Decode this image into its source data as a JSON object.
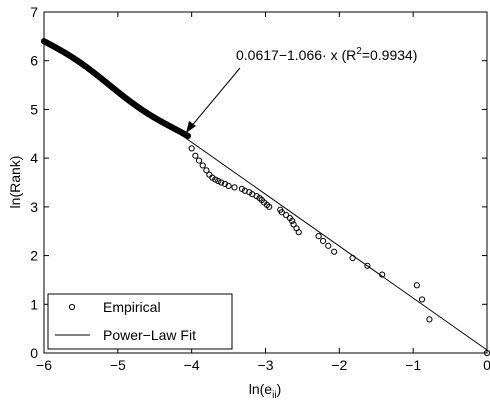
{
  "chart_data": {
    "type": "scatter",
    "xlabel_main": "ln(e",
    "xlabel_sub": "ii",
    "xlabel_close": ")",
    "ylabel": "ln(Rank)",
    "xlim": [
      -6,
      0
    ],
    "ylim": [
      0,
      7
    ],
    "x_ticks": [
      "-6",
      "-5",
      "-4",
      "-3",
      "-2",
      "-1",
      "0"
    ],
    "y_ticks": [
      "0",
      "1",
      "2",
      "3",
      "4",
      "5",
      "6",
      "7"
    ],
    "grid": false,
    "annotation": {
      "formula": "0.0617−1.066· x (R",
      "sup": "2",
      "formula_end": "=0.9934)",
      "target": [
        -4.05,
        4.42
      ]
    },
    "legend": {
      "position": "bottom-left",
      "entries": [
        {
          "label": "Empirical",
          "marker": "circle"
        },
        {
          "label": "Power−Law Fit",
          "marker": "line"
        }
      ]
    },
    "series": [
      {
        "name": "Empirical",
        "x": [
          0.0,
          -0.78,
          -0.88,
          -0.95,
          -1.42,
          -1.62,
          -1.82,
          -2.07,
          -2.15,
          -2.22,
          -2.28,
          -2.55,
          -2.58,
          -2.62,
          -2.64,
          -2.67,
          -2.72,
          -2.78,
          -2.8,
          -2.95,
          -2.98,
          -3.02,
          -3.05,
          -3.08,
          -3.12,
          -3.18,
          -3.22,
          -3.28,
          -3.32,
          -3.42,
          -3.5,
          -3.55,
          -3.6,
          -3.64,
          -3.68,
          -3.72,
          -3.76,
          -3.8,
          -3.85,
          -3.9,
          -3.95,
          -4.0
        ],
        "y": [
          0.0,
          0.69,
          1.1,
          1.39,
          1.61,
          1.79,
          1.95,
          2.08,
          2.2,
          2.3,
          2.4,
          2.48,
          2.56,
          2.64,
          2.71,
          2.77,
          2.83,
          2.89,
          2.94,
          3.0,
          3.04,
          3.09,
          3.14,
          3.18,
          3.22,
          3.26,
          3.3,
          3.33,
          3.37,
          3.4,
          3.43,
          3.47,
          3.5,
          3.53,
          3.56,
          3.6,
          3.66,
          3.75,
          3.85,
          3.95,
          4.05,
          4.2
        ],
        "dense_band": {
          "x_range": [
            -6.0,
            -4.05
          ],
          "y_at_start": 6.4,
          "y_at_end": 4.42,
          "note_points": 180
        }
      },
      {
        "name": "Power−Law Fit",
        "intercept": 0.0617,
        "slope": -1.066,
        "x_range": [
          -6.0,
          0.0
        ]
      }
    ]
  }
}
